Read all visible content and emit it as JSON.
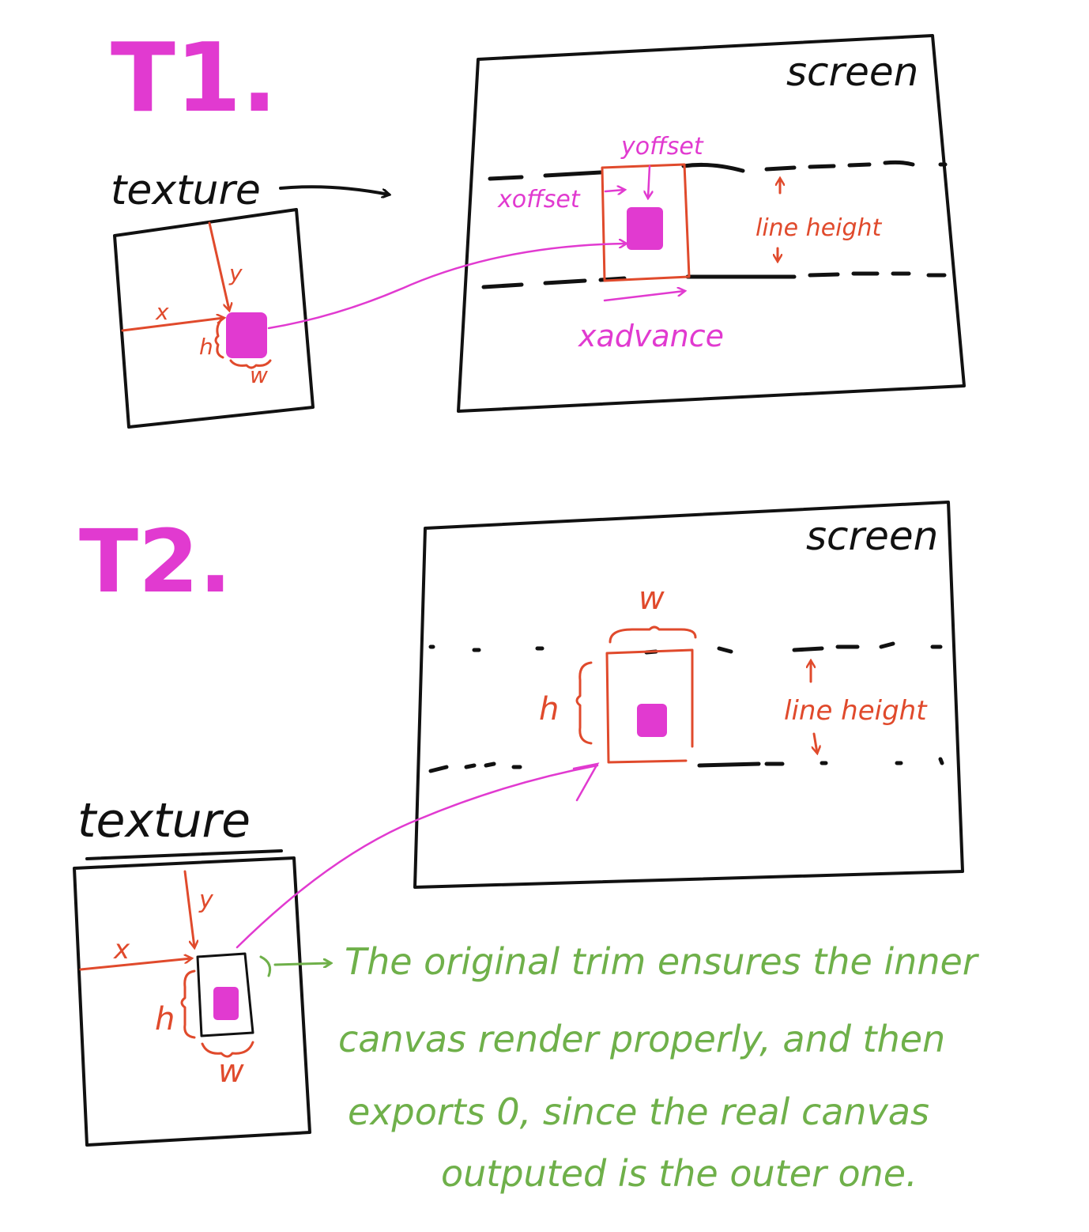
{
  "colors": {
    "ink": "#111111",
    "red": "#e04a2c",
    "magenta": "#e13ad0",
    "green": "#6fb04a"
  },
  "t1": {
    "heading": "T1.",
    "texture_label": "texture",
    "screen_label": "screen",
    "labels": {
      "x": "x",
      "y": "y",
      "h": "h",
      "w": "w",
      "xoffset": "xoffset",
      "yoffset": "yoffset",
      "line_height": "line height",
      "xadvance": "xadvance"
    }
  },
  "t2": {
    "heading": "T2.",
    "texture_label": "texture",
    "screen_label": "screen",
    "labels": {
      "x": "x",
      "y": "y",
      "h_texture": "h",
      "w_texture": "w",
      "h_screen": "h",
      "w_screen": "w",
      "line_height": "line height"
    },
    "note_lines": [
      "The original trim ensures the inner",
      "canvas render properly, and then",
      "exports 0, since the real canvas",
      "outputed is the outer one."
    ]
  }
}
